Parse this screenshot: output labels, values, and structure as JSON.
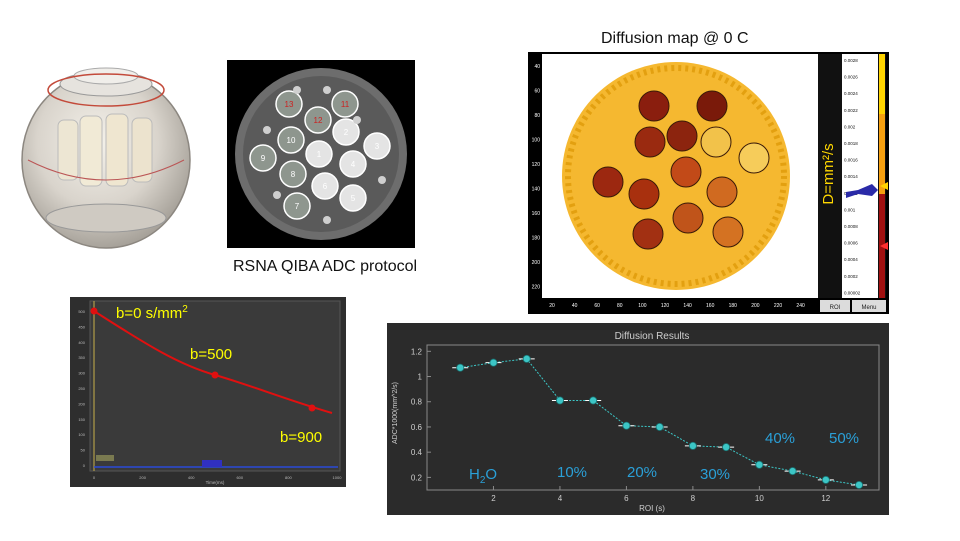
{
  "slide": {
    "protocol_caption": "RSNA QIBA ADC protocol",
    "map_title": "Diffusion map @ 0 C"
  },
  "phantom_mri": {
    "vial_labels": [
      "13",
      "11",
      "12",
      "10",
      "2",
      "3",
      "9",
      "8",
      "1",
      "4",
      "7",
      "6",
      "5"
    ]
  },
  "diffusion_map": {
    "unit_label": "D=mm²/s",
    "y_ticks": [
      "40",
      "60",
      "80",
      "100",
      "120",
      "140",
      "160",
      "180",
      "200",
      "220"
    ],
    "x_ticks": [
      "20",
      "40",
      "60",
      "80",
      "100",
      "120",
      "140",
      "160",
      "180",
      "200",
      "220",
      "240"
    ],
    "colorbar_ticks": [
      "0.0028",
      "0.0026",
      "0.0024",
      "0.0022",
      "0.002",
      "0.0018",
      "0.0016",
      "0.0014",
      "0.0012",
      "0.001",
      "0.0008",
      "0.0006",
      "0.0004",
      "0.0002",
      "0.00002"
    ],
    "buttons": [
      "ROI",
      "Menu"
    ]
  },
  "decay_plot": {
    "labels": {
      "b0_prefix": "b=0 s/mm",
      "b0_sup": "2",
      "b500": "b=500",
      "b900": "b=900"
    },
    "y_ticks": [
      "500",
      "450",
      "400",
      "350",
      "300",
      "250",
      "200",
      "150",
      "100",
      "50",
      "0"
    ],
    "x_ticks": [
      "0",
      "200",
      "400",
      "600",
      "800",
      "1000"
    ],
    "x_label": "Time(ms)"
  },
  "diffusion_results": {
    "title": "Diffusion Results",
    "y_label": "ADC*1000(mm^2/s)",
    "x_label": "ROI (s)",
    "group_labels": {
      "water_prefix": "H",
      "water_sub": "2",
      "water_suffix": "O",
      "p10": "10%",
      "p20": "20%",
      "p30": "30%",
      "p40": "40%",
      "p50": "50%"
    },
    "colors": {
      "background": "#2b2b2b",
      "marker": "#3cc6c6",
      "label": "#2aa0d8"
    }
  },
  "chart_data": {
    "type": "scatter",
    "title": "Diffusion Results",
    "xlabel": "ROI (s)",
    "ylabel": "ADC*1000(mm^2/s)",
    "x": [
      1,
      2,
      3,
      4,
      5,
      6,
      7,
      8,
      9,
      10,
      11,
      12,
      13
    ],
    "series": [
      {
        "values": [
          1.07,
          1.11,
          1.14,
          0.81,
          0.81,
          0.61,
          0.6,
          0.45,
          0.44,
          0.3,
          0.25,
          0.18,
          0.14
        ]
      }
    ],
    "xlim": [
      0,
      13.6
    ],
    "ylim": [
      0.1,
      1.25
    ],
    "xticks": [
      "2",
      "4",
      "6",
      "8",
      "10",
      "12"
    ],
    "yticks": [
      "0.2",
      "0.4",
      "0.6",
      "0.8",
      "1",
      "1.2"
    ]
  }
}
